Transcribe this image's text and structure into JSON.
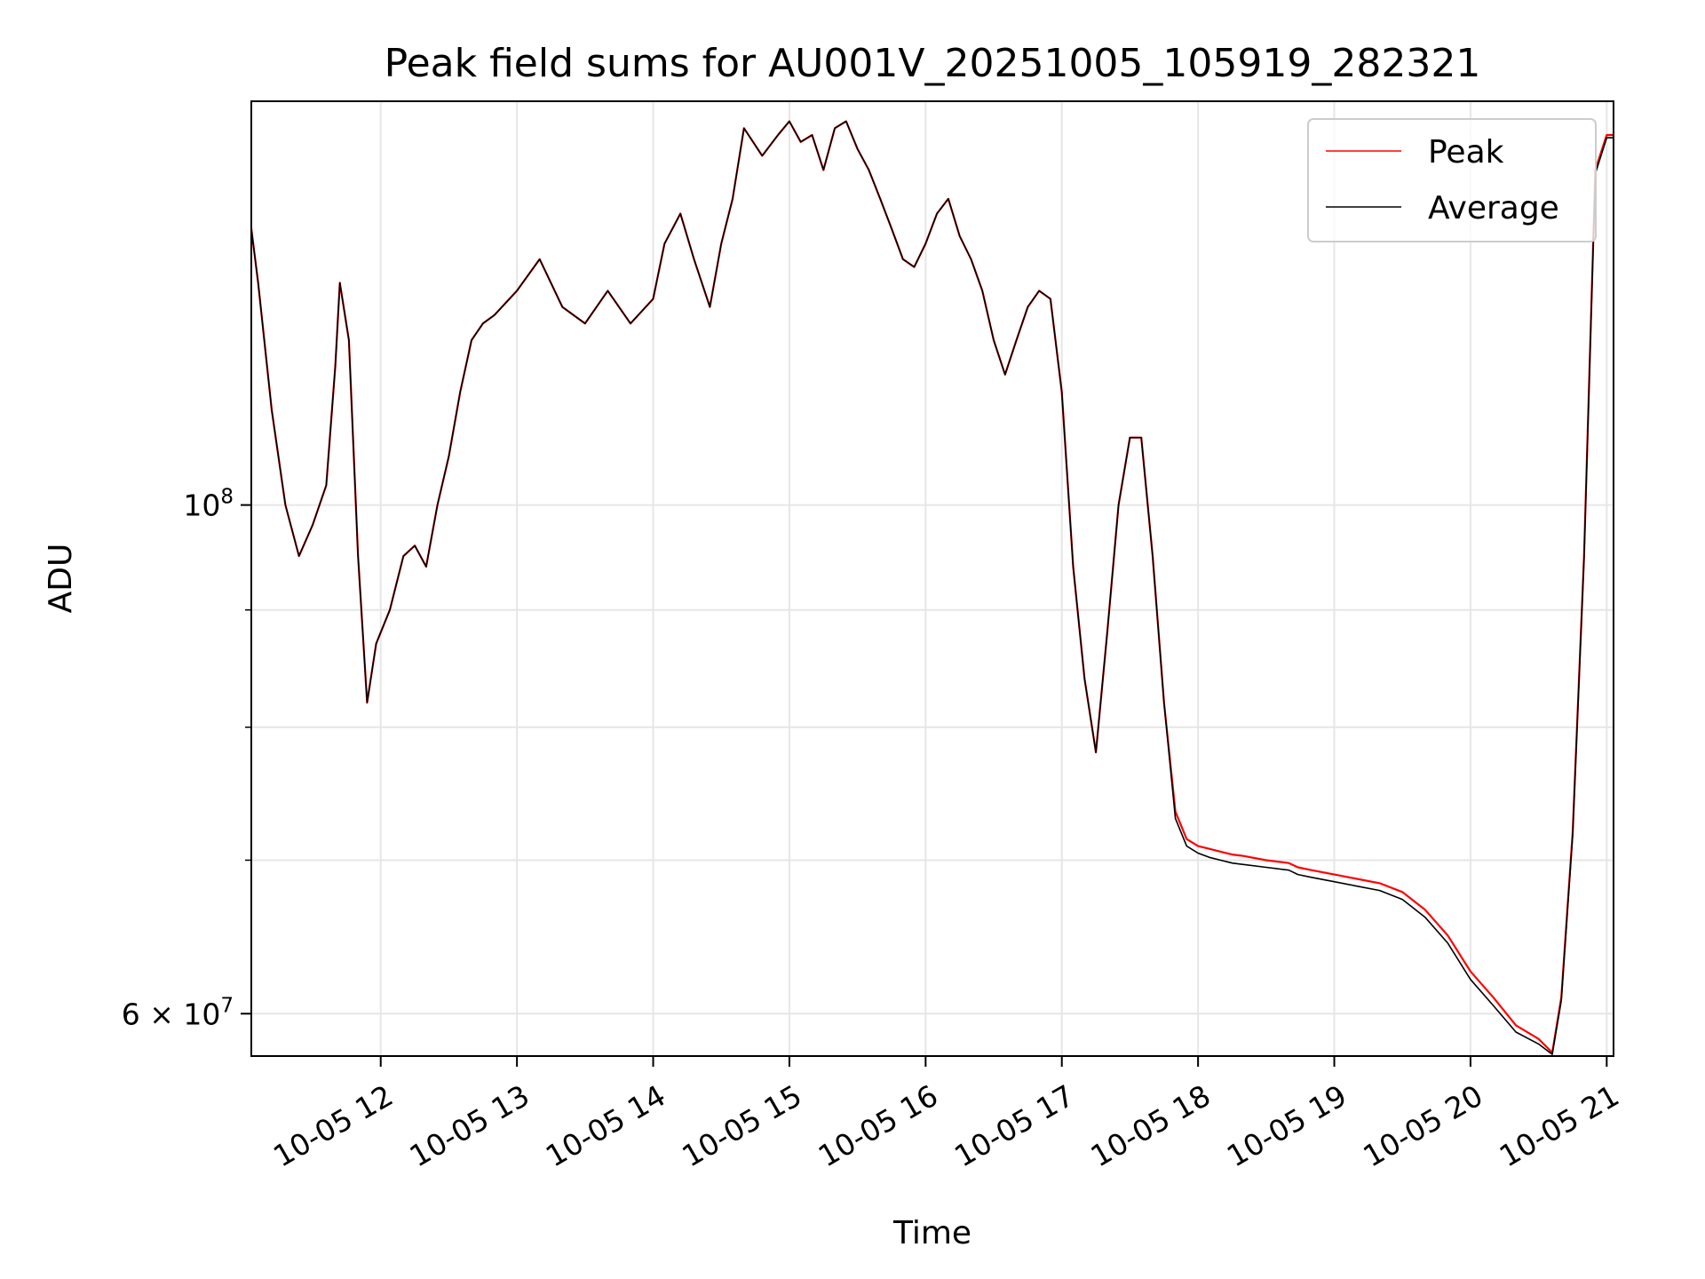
{
  "chart_data": {
    "type": "line",
    "title": "Peak field sums for AU001V_20251005_105919_282321",
    "xlabel": "Time",
    "ylabel": "ADU",
    "yscale": "log",
    "grid": true,
    "legend_placement": "top-right",
    "xlim": [
      "10-05 11:03",
      "10-05 21:03"
    ],
    "ylim": [
      57500000,
      150000000
    ],
    "x_ticks": [
      "10-05 12",
      "10-05 13",
      "10-05 14",
      "10-05 15",
      "10-05 16",
      "10-05 17",
      "10-05 18",
      "10-05 19",
      "10-05 20",
      "10-05 21"
    ],
    "y_ticks_major": [
      {
        "value": 100000000,
        "base": "10",
        "exp": "8"
      },
      {
        "value": 60000000,
        "mant": "6",
        "base": "10",
        "exp": "7"
      }
    ],
    "y_ticks_minor": [
      70000000,
      80000000,
      90000000
    ],
    "x": [
      "10-05 11:03",
      "10-05 11:06",
      "10-05 11:12",
      "10-05 11:18",
      "10-05 11:24",
      "10-05 11:30",
      "10-05 11:36",
      "10-05 11:40",
      "10-05 11:42",
      "10-05 11:46",
      "10-05 11:50",
      "10-05 11:54",
      "10-05 11:58",
      "10-05 12:04",
      "10-05 12:10",
      "10-05 12:15",
      "10-05 12:20",
      "10-05 12:25",
      "10-05 12:30",
      "10-05 12:35",
      "10-05 12:40",
      "10-05 12:45",
      "10-05 12:50",
      "10-05 13:00",
      "10-05 13:10",
      "10-05 13:20",
      "10-05 13:30",
      "10-05 13:40",
      "10-05 13:50",
      "10-05 14:00",
      "10-05 14:05",
      "10-05 14:12",
      "10-05 14:18",
      "10-05 14:25",
      "10-05 14:30",
      "10-05 14:35",
      "10-05 14:40",
      "10-05 14:48",
      "10-05 14:55",
      "10-05 15:00",
      "10-05 15:05",
      "10-05 15:10",
      "10-05 15:15",
      "10-05 15:20",
      "10-05 15:25",
      "10-05 15:30",
      "10-05 15:35",
      "10-05 15:40",
      "10-05 15:45",
      "10-05 15:50",
      "10-05 15:55",
      "10-05 16:00",
      "10-05 16:05",
      "10-05 16:10",
      "10-05 16:15",
      "10-05 16:20",
      "10-05 16:25",
      "10-05 16:30",
      "10-05 16:35",
      "10-05 16:40",
      "10-05 16:45",
      "10-05 16:50",
      "10-05 16:55",
      "10-05 17:00",
      "10-05 17:05",
      "10-05 17:10",
      "10-05 17:15",
      "10-05 17:20",
      "10-05 17:25",
      "10-05 17:30",
      "10-05 17:35",
      "10-05 17:40",
      "10-05 17:45",
      "10-05 17:50",
      "10-05 17:55",
      "10-05 18:00",
      "10-05 18:05",
      "10-05 18:10",
      "10-05 18:15",
      "10-05 18:20",
      "10-05 18:30",
      "10-05 18:40",
      "10-05 18:44",
      "10-05 18:50",
      "10-05 19:00",
      "10-05 19:10",
      "10-05 19:20",
      "10-05 19:30",
      "10-05 19:40",
      "10-05 19:50",
      "10-05 20:00",
      "10-05 20:10",
      "10-05 20:20",
      "10-05 20:30",
      "10-05 20:36",
      "10-05 20:40",
      "10-05 20:45",
      "10-05 20:50",
      "10-05 20:55",
      "10-05 21:00",
      "10-05 21:03"
    ],
    "series": [
      {
        "name": "Peak",
        "color": "#ff0000",
        "values": [
          132000000,
          125000000,
          110000000,
          100000000,
          95000000,
          98000000,
          102000000,
          115000000,
          125000000,
          118000000,
          95000000,
          82000000,
          87000000,
          90000000,
          95000000,
          96000000,
          94000000,
          100000000,
          105000000,
          112000000,
          118000000,
          120000000,
          121000000,
          124000000,
          128000000,
          122000000,
          120000000,
          124000000,
          120000000,
          123000000,
          130000000,
          134000000,
          128000000,
          122000000,
          130000000,
          136000000,
          146000000,
          142000000,
          145000000,
          147000000,
          144000000,
          145000000,
          140000000,
          146000000,
          147000000,
          143000000,
          140000000,
          136000000,
          132000000,
          128000000,
          127000000,
          130000000,
          134000000,
          136000000,
          131000000,
          128000000,
          124000000,
          118000000,
          114000000,
          118000000,
          122000000,
          124000000,
          123000000,
          112000000,
          94000000,
          84000000,
          78000000,
          88000000,
          100000000,
          107000000,
          107000000,
          95000000,
          82000000,
          73500000,
          71500000,
          71000000,
          70800000,
          70600000,
          70400000,
          70300000,
          70000000,
          69800000,
          69500000,
          69300000,
          69000000,
          68700000,
          68400000,
          67800000,
          66600000,
          64900000,
          62600000,
          61000000,
          59300000,
          58500000,
          57700000,
          61000000,
          72000000,
          95000000,
          140000000,
          145000000,
          145000000
        ]
      },
      {
        "name": "Average",
        "color": "#000000",
        "values": [
          132000000,
          125000000,
          110000000,
          100000000,
          95000000,
          98000000,
          102000000,
          115000000,
          125000000,
          118000000,
          95000000,
          82000000,
          87000000,
          90000000,
          95000000,
          96000000,
          94000000,
          100000000,
          105000000,
          112000000,
          118000000,
          120000000,
          121000000,
          124000000,
          128000000,
          122000000,
          120000000,
          124000000,
          120000000,
          123000000,
          130000000,
          134000000,
          128000000,
          122000000,
          130000000,
          136000000,
          146000000,
          142000000,
          145000000,
          147000000,
          144000000,
          145000000,
          140000000,
          146000000,
          147000000,
          143000000,
          140000000,
          136000000,
          132000000,
          128000000,
          127000000,
          130000000,
          134000000,
          136000000,
          131000000,
          128000000,
          124000000,
          118000000,
          114000000,
          118000000,
          122000000,
          124000000,
          123000000,
          112000000,
          94000000,
          84000000,
          78000000,
          88000000,
          100000000,
          107000000,
          107000000,
          95000000,
          82000000,
          73000000,
          71000000,
          70500000,
          70200000,
          70000000,
          69800000,
          69700000,
          69500000,
          69300000,
          69000000,
          68800000,
          68500000,
          68200000,
          67900000,
          67300000,
          66100000,
          64400000,
          62100000,
          60500000,
          58900000,
          58200000,
          57600000,
          60800000,
          71800000,
          94800000,
          139500000,
          144600000,
          144600000
        ]
      }
    ]
  }
}
